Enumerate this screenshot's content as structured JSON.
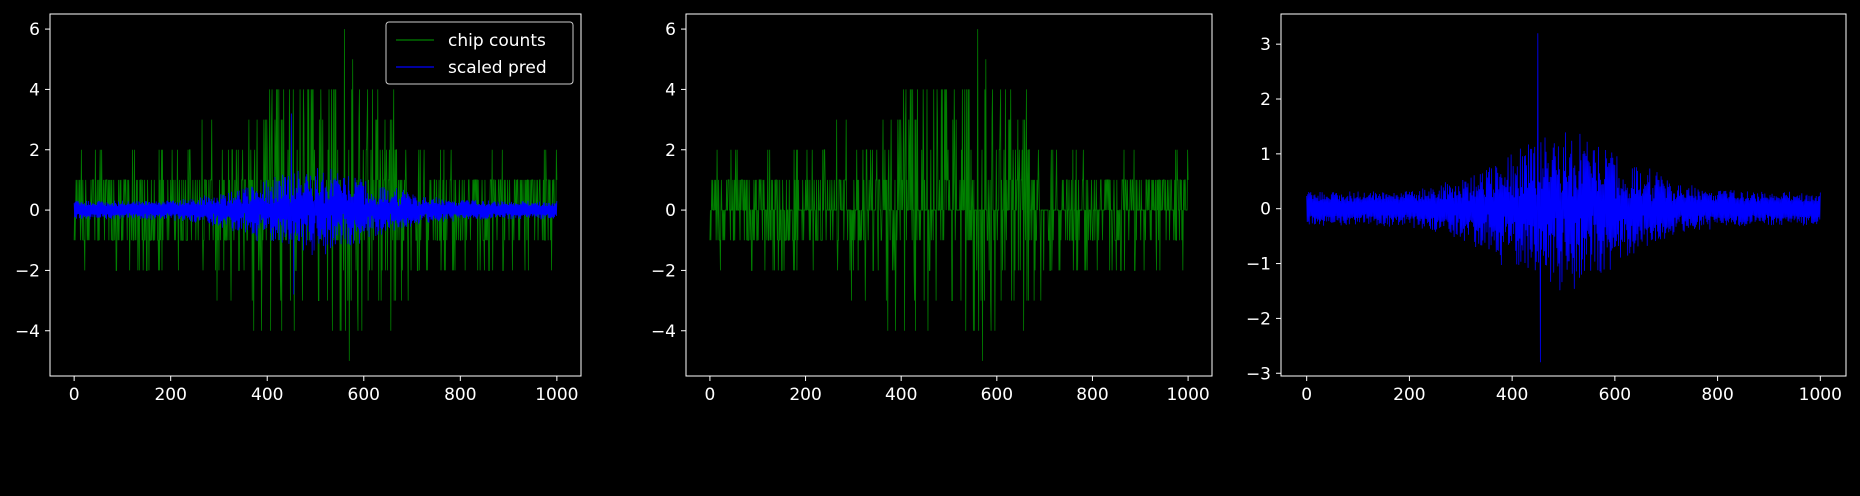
{
  "figure": {
    "background": "#000000",
    "foreground": "#ffffff"
  },
  "chart_data": [
    {
      "type": "line",
      "panel": 1,
      "title": "",
      "xlabel": "",
      "ylabel": "",
      "xlim": [
        -50,
        1050
      ],
      "ylim": [
        -5.5,
        6.5
      ],
      "xticks": [
        0,
        200,
        400,
        600,
        800,
        1000
      ],
      "yticks": [
        -4,
        -2,
        0,
        2,
        4,
        6
      ],
      "xtick_labels": [
        "0",
        "200",
        "400",
        "600",
        "800",
        "1000"
      ],
      "ytick_labels": [
        "−4",
        "−2",
        "0",
        "2",
        "4",
        "6"
      ],
      "grid": false,
      "legend": {
        "placement": "upper right",
        "entries": [
          "chip counts",
          "scaled pred"
        ]
      },
      "series": [
        {
          "name": "chip counts",
          "color": "#008000",
          "kind": "integer counts in [-5, 6] across 1000 samples; amplitude peaks near x≈400-600",
          "x_range": [
            0,
            1000
          ],
          "extremes": {
            "max": 6,
            "max_at": 560,
            "min": -5,
            "min_at": 570
          }
        },
        {
          "name": "scaled pred",
          "color": "#0000ff",
          "kind": "two bands: upper 0..3.2 and lower -2.8..0, widest near x≈450-550",
          "x_range": [
            0,
            1000
          ],
          "extremes": {
            "max": 3.2,
            "max_at": 450,
            "min": -2.8,
            "min_at": 455
          }
        }
      ]
    },
    {
      "type": "line",
      "panel": 2,
      "title": "",
      "xlabel": "",
      "ylabel": "",
      "xlim": [
        -50,
        1050
      ],
      "ylim": [
        -5.5,
        6.5
      ],
      "xticks": [
        0,
        200,
        400,
        600,
        800,
        1000
      ],
      "yticks": [
        -4,
        -2,
        0,
        2,
        4,
        6
      ],
      "xtick_labels": [
        "0",
        "200",
        "400",
        "600",
        "800",
        "1000"
      ],
      "ytick_labels": [
        "−4",
        "−2",
        "0",
        "2",
        "4",
        "6"
      ],
      "grid": false,
      "series": [
        {
          "color": "#008000",
          "kind": "integer counts in [-5, 6] across 1000 samples",
          "x_range": [
            0,
            1000
          ],
          "extremes": {
            "max": 6,
            "max_at": 560,
            "min": -5,
            "min_at": 570
          }
        }
      ]
    },
    {
      "type": "line",
      "panel": 3,
      "title": "",
      "xlabel": "",
      "ylabel": "",
      "xlim": [
        -50,
        1050
      ],
      "ylim": [
        -3.05,
        3.55
      ],
      "xticks": [
        0,
        200,
        400,
        600,
        800,
        1000
      ],
      "yticks": [
        -3,
        -2,
        -1,
        0,
        1,
        2,
        3
      ],
      "xtick_labels": [
        "0",
        "200",
        "400",
        "600",
        "800",
        "1000"
      ],
      "ytick_labels": [
        "−3",
        "−2",
        "−1",
        "0",
        "1",
        "2",
        "3"
      ],
      "grid": false,
      "series": [
        {
          "color": "#0000ff",
          "kind": "two bands: upper 0..3.2 and lower -2.8..0, widest near x≈450-550",
          "x_range": [
            0,
            1000
          ],
          "extremes": {
            "max": 3.2,
            "max_at": 450,
            "min": -2.8,
            "min_at": 455
          }
        }
      ]
    }
  ]
}
